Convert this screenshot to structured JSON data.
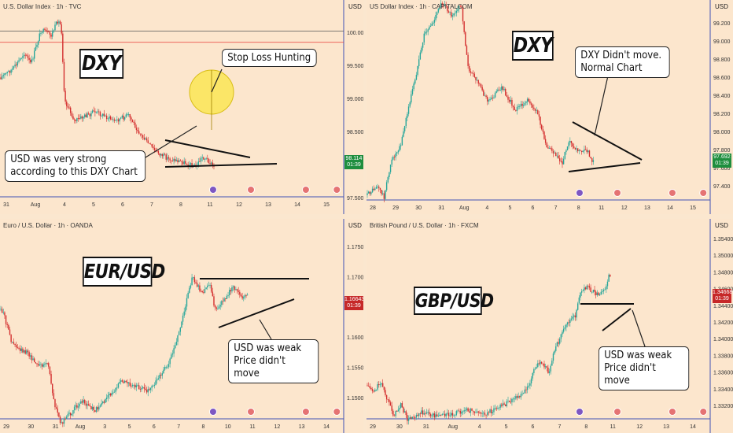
{
  "colors": {
    "background": "#fce6cd",
    "up": "#26a69a",
    "down": "#d32f2f",
    "axis_border": "#3f51b5",
    "red_level": "#e53935",
    "green_tag": "#1e8e3e",
    "red_tag": "#c62828",
    "highlight_circle": "#fbe65c"
  },
  "chart_data": [
    {
      "type": "candlestick",
      "title": "U.S. Dollar Index · 1h · TVC",
      "currency_label": "USD",
      "big_label": "DXY",
      "y_ticks": [
        "100.000",
        "99.500",
        "99.000",
        "98.500",
        "98.000",
        "97.500"
      ],
      "ylim": [
        97.45,
        100.3
      ],
      "x_ticks": [
        "31",
        "Aug",
        "4",
        "5",
        "6",
        "7",
        "8",
        "11",
        "12",
        "13",
        "14",
        "15"
      ],
      "last_price": "98.114",
      "countdown": "01:39",
      "horizontal_levels": [
        100.0,
        99.83
      ],
      "callouts": [
        {
          "text": "Stop Loss Hunting"
        },
        {
          "text": "USD was very strong\naccording to this DXY Chart"
        }
      ]
    },
    {
      "type": "candlestick",
      "title": "US Dollar Index · 1h · CAPITALCOM",
      "currency_label": "USD",
      "big_label": "DXY",
      "y_ticks": [
        "99.200",
        "99.000",
        "98.800",
        "98.600",
        "98.400",
        "98.200",
        "98.000",
        "97.800",
        "97.600",
        "97.400"
      ],
      "ylim": [
        97.3,
        99.35
      ],
      "x_ticks": [
        "28",
        "29",
        "30",
        "31",
        "Aug",
        "4",
        "5",
        "6",
        "7",
        "8",
        "11",
        "12",
        "13",
        "14",
        "15"
      ],
      "last_price": "97.692",
      "countdown": "01:39",
      "callouts": [
        {
          "text": "DXY Didn't move.\nNormal Chart"
        }
      ]
    },
    {
      "type": "candlestick",
      "title": "Euro / U.S. Dollar · 1h · OANDA",
      "currency_label": "USD",
      "big_label": "EUR/USD",
      "y_ticks": [
        "1.17500",
        "1.17000",
        "1.16500",
        "1.16000",
        "1.15500",
        "1.15000"
      ],
      "ylim": [
        1.1465,
        1.1785
      ],
      "x_ticks": [
        "29",
        "30",
        "31",
        "Aug",
        "3",
        "5",
        "6",
        "7",
        "8",
        "10",
        "11",
        "12",
        "13",
        "14"
      ],
      "last_price": "1.16643",
      "countdown": "01:39",
      "callouts": [
        {
          "text": "USD was weak\nPrice didn't move"
        }
      ]
    },
    {
      "type": "candlestick",
      "title": "British Pound / U.S. Dollar · 1h · FXCM",
      "currency_label": "USD",
      "big_label": "GBP/USD",
      "y_ticks": [
        "1.35400",
        "1.35000",
        "1.34800",
        "1.34600",
        "1.34400",
        "1.34200",
        "1.34000",
        "1.33800",
        "1.33600",
        "1.33400",
        "1.33200"
      ],
      "ylim": [
        1.3305,
        1.3555
      ],
      "x_ticks": [
        "29",
        "30",
        "31",
        "Aug",
        "4",
        "5",
        "6",
        "7",
        "8",
        "11",
        "12",
        "13",
        "14"
      ],
      "last_price": "1.34668",
      "countdown": "01:39",
      "callouts": [
        {
          "text": "USD was weak\nPrice didn't move"
        }
      ]
    }
  ]
}
